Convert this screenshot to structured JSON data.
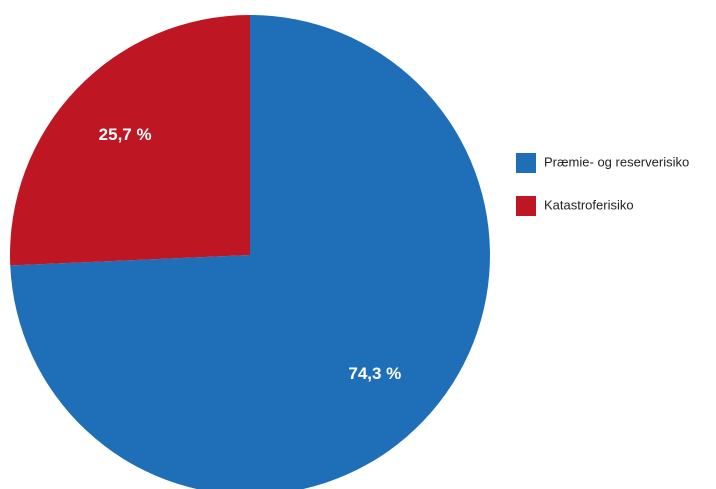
{
  "chart_data": {
    "type": "pie",
    "title": "",
    "slices": [
      {
        "label": "Præmie- og reserverisiko",
        "value": 74.3,
        "value_label": "74,3 %",
        "color": "#1f6fb8"
      },
      {
        "label": "Katastroferisiko",
        "value": 25.7,
        "value_label": "25,7 %",
        "color": "#be1622"
      }
    ],
    "start_angle_deg": 0,
    "direction": "clockwise",
    "legend": {
      "placement": "right",
      "entries": [
        "Præmie- og reserverisiko",
        "Katastroferisiko"
      ]
    }
  }
}
